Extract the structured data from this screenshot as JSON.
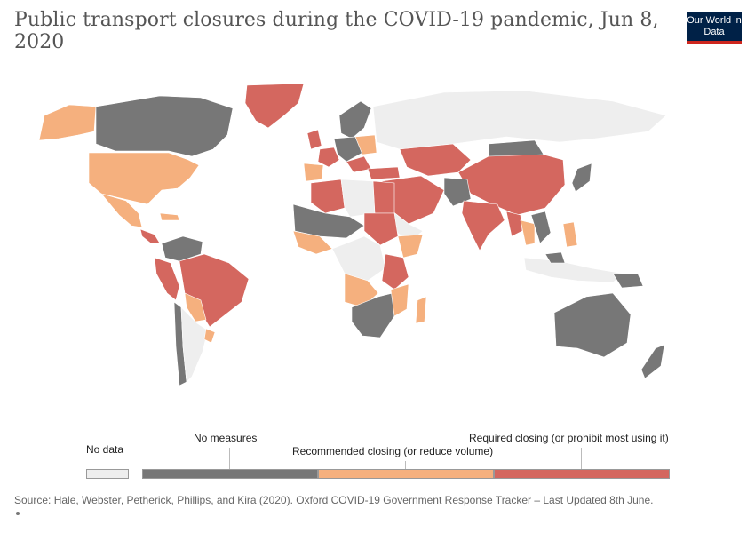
{
  "header": {
    "title": "Public transport closures during the COVID-19 pandemic, Jun 8, 2020",
    "logo_text": "Our World in Data"
  },
  "legend": {
    "no_data": "No data",
    "categories": [
      "No measures",
      "Recommended closing (or reduce volume)",
      "Required closing (or prohibit most using it)"
    ]
  },
  "colors": {
    "no_data": "#eeeeee",
    "no_measures": "#777777",
    "recommended": "#f5b07e",
    "required": "#d4675f",
    "ocean": "#ffffff"
  },
  "footer": {
    "source": "Source: Hale, Webster, Petherick, Phillips, and Kira (2020). Oxford COVID-19 Government Response Tracker – Last Updated 8th June."
  }
}
